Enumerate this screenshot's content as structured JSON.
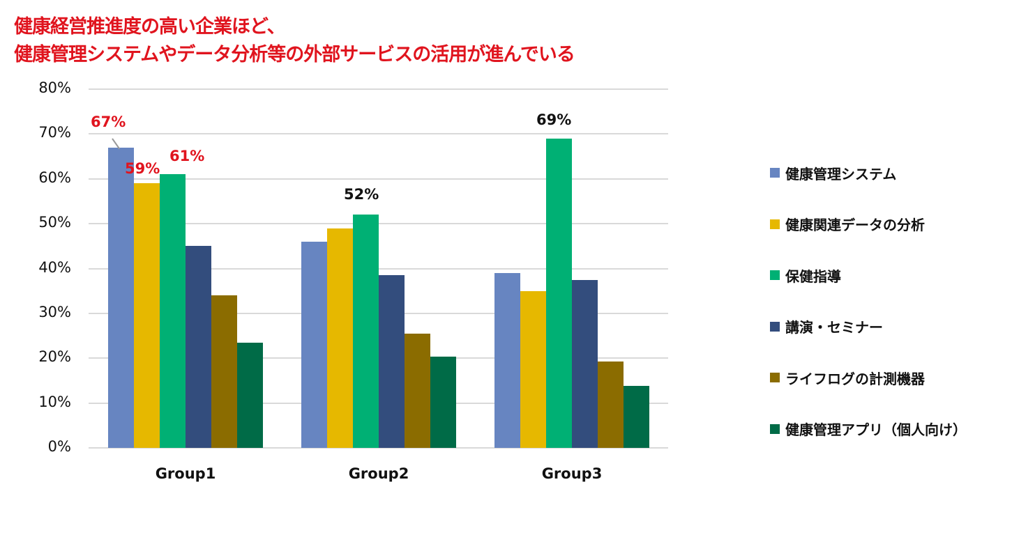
{
  "title": {
    "line1": "健康経営推進度の高い企業ほど、",
    "line2": "健康管理システムやデータ分析等の外部サービスの活用が進んでいる",
    "color": "#e0141e"
  },
  "chart_data": {
    "type": "bar",
    "title": "健康経営推進度の高い企業ほど、健康管理システムやデータ分析等の外部サービスの活用が進んでいる",
    "xlabel": "",
    "ylabel": "",
    "ylim": [
      0,
      80
    ],
    "yticks": [
      "0%",
      "10%",
      "20%",
      "30%",
      "40%",
      "50%",
      "60%",
      "70%",
      "80%"
    ],
    "grid": true,
    "legend_position": "right",
    "categories": [
      "Group1",
      "Group2",
      "Group3"
    ],
    "series": [
      {
        "name": "健康管理システム",
        "color": "#6785c1",
        "values": [
          67,
          46,
          39
        ]
      },
      {
        "name": "健康関連データの分析",
        "color": "#e6b800",
        "values": [
          59,
          49,
          35
        ]
      },
      {
        "name": "保健指導",
        "color": "#00b074",
        "values": [
          61,
          52,
          69
        ]
      },
      {
        "name": "講演・セミナー",
        "color": "#334d7d",
        "values": [
          45,
          38.6,
          37.5
        ]
      },
      {
        "name": "ライフログの計測機器",
        "color": "#8b6c00",
        "values": [
          34,
          25.5,
          19.3
        ]
      },
      {
        "name": "健康管理アプリ（個人向け）",
        "color": "#006b47",
        "values": [
          23.5,
          20.4,
          13.9
        ]
      }
    ],
    "annotations": [
      {
        "text": "67%",
        "category": "Group1",
        "series": 0,
        "color": "#e0141e"
      },
      {
        "text": "59%",
        "category": "Group1",
        "series": 1,
        "color": "#e0141e"
      },
      {
        "text": "61%",
        "category": "Group1",
        "series": 2,
        "color": "#e0141e"
      },
      {
        "text": "52%",
        "category": "Group2",
        "series": 2,
        "color": "#111111"
      },
      {
        "text": "69%",
        "category": "Group3",
        "series": 2,
        "color": "#111111"
      }
    ]
  }
}
